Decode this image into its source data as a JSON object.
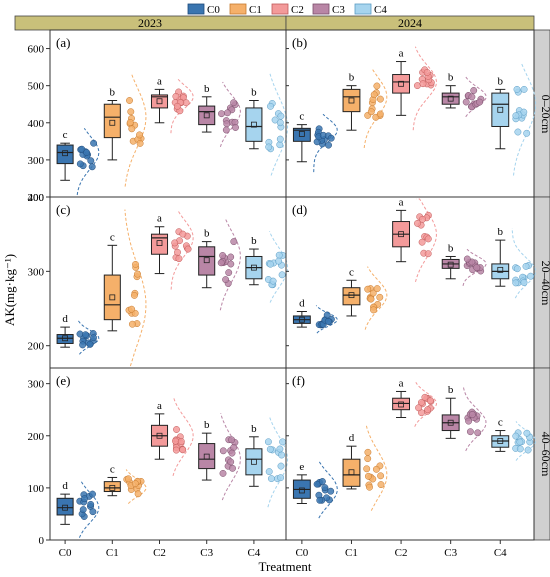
{
  "legend": [
    {
      "name": "C0",
      "color": "#3a75b0"
    },
    {
      "name": "C1",
      "color": "#f5b06a"
    },
    {
      "name": "C2",
      "color": "#f39a9a"
    },
    {
      "name": "C3",
      "color": "#b986a6"
    },
    {
      "name": "C4",
      "color": "#a6d4ee"
    }
  ],
  "years": [
    "2023",
    "2024"
  ],
  "depths": [
    "0–20cm",
    "20–40cm",
    "40–60cm"
  ],
  "ylabel": "AK(mg·kg⁻¹)",
  "xlabel": "Treatment",
  "strip_color": "#c9c07a",
  "side_strip_color": "#d0d0d0",
  "chart_data": [
    {
      "type": "box",
      "panel": "(a)",
      "year": "2023",
      "depth": "0–20cm",
      "ylim": [
        200,
        650
      ],
      "yticks": [
        200,
        300,
        400,
        500,
        600
      ],
      "categories": [
        "C0",
        "C1",
        "C2",
        "C3",
        "C4"
      ],
      "boxes": [
        {
          "q1": 290,
          "median": 320,
          "q3": 340,
          "whisker_low": 245,
          "whisker_high": 345,
          "mean": 318,
          "letter": "c"
        },
        {
          "q1": 360,
          "median": 415,
          "q3": 450,
          "whisker_low": 300,
          "whisker_high": 460,
          "mean": 400,
          "letter": "b"
        },
        {
          "q1": 440,
          "median": 470,
          "q3": 475,
          "whisker_low": 400,
          "whisker_high": 490,
          "mean": 458,
          "letter": "a"
        },
        {
          "q1": 395,
          "median": 430,
          "q3": 445,
          "whisker_low": 375,
          "whisker_high": 470,
          "mean": 420,
          "letter": "b"
        },
        {
          "q1": 350,
          "median": 390,
          "q3": 440,
          "whisker_low": 330,
          "whisker_high": 460,
          "mean": 395,
          "letter": "b"
        }
      ]
    },
    {
      "type": "box",
      "panel": "(b)",
      "year": "2024",
      "depth": "0–20cm",
      "ylim": [
        200,
        650
      ],
      "yticks": [
        200,
        300,
        400,
        500,
        600
      ],
      "categories": [
        "C0",
        "C1",
        "C2",
        "C3",
        "C4"
      ],
      "boxes": [
        {
          "q1": 350,
          "median": 380,
          "q3": 385,
          "whisker_low": 295,
          "whisker_high": 395,
          "mean": 370,
          "letter": "c"
        },
        {
          "q1": 430,
          "median": 470,
          "q3": 490,
          "whisker_low": 380,
          "whisker_high": 500,
          "mean": 460,
          "letter": "b"
        },
        {
          "q1": 480,
          "median": 510,
          "q3": 530,
          "whisker_low": 420,
          "whisker_high": 565,
          "mean": 505,
          "letter": "a"
        },
        {
          "q1": 450,
          "median": 470,
          "q3": 480,
          "whisker_low": 440,
          "whisker_high": 500,
          "mean": 465,
          "letter": "b"
        },
        {
          "q1": 390,
          "median": 450,
          "q3": 480,
          "whisker_low": 330,
          "whisker_high": 490,
          "mean": 435,
          "letter": "b"
        }
      ]
    },
    {
      "type": "box",
      "panel": "(c)",
      "year": "2023",
      "depth": "20–40cm",
      "ylim": [
        170,
        400
      ],
      "yticks": [
        200,
        300,
        400
      ],
      "categories": [
        "C0",
        "C1",
        "C2",
        "C3",
        "C4"
      ],
      "boxes": [
        {
          "q1": 203,
          "median": 210,
          "q3": 215,
          "whisker_low": 198,
          "whisker_high": 225,
          "mean": 210,
          "letter": "d"
        },
        {
          "q1": 235,
          "median": 255,
          "q3": 295,
          "whisker_low": 220,
          "whisker_high": 335,
          "mean": 265,
          "letter": "c"
        },
        {
          "q1": 323,
          "median": 345,
          "q3": 350,
          "whisker_low": 297,
          "whisker_high": 360,
          "mean": 338,
          "letter": "a"
        },
        {
          "q1": 295,
          "median": 320,
          "q3": 333,
          "whisker_low": 278,
          "whisker_high": 340,
          "mean": 315,
          "letter": "b"
        },
        {
          "q1": 290,
          "median": 305,
          "q3": 320,
          "whisker_low": 282,
          "whisker_high": 330,
          "mean": 305,
          "letter": "b"
        }
      ]
    },
    {
      "type": "box",
      "panel": "(d)",
      "year": "2024",
      "depth": "20–40cm",
      "ylim": [
        170,
        400
      ],
      "yticks": [
        200,
        300,
        400
      ],
      "categories": [
        "C0",
        "C1",
        "C2",
        "C3",
        "C4"
      ],
      "boxes": [
        {
          "q1": 230,
          "median": 235,
          "q3": 240,
          "whisker_low": 225,
          "whisker_high": 246,
          "mean": 235,
          "letter": "d"
        },
        {
          "q1": 255,
          "median": 268,
          "q3": 278,
          "whisker_low": 240,
          "whisker_high": 288,
          "mean": 268,
          "letter": "c"
        },
        {
          "q1": 333,
          "median": 350,
          "q3": 367,
          "whisker_low": 313,
          "whisker_high": 382,
          "mean": 350,
          "letter": "a"
        },
        {
          "q1": 304,
          "median": 310,
          "q3": 316,
          "whisker_low": 290,
          "whisker_high": 320,
          "mean": 309,
          "letter": "b"
        },
        {
          "q1": 290,
          "median": 300,
          "q3": 310,
          "whisker_low": 280,
          "whisker_high": 342,
          "mean": 302,
          "letter": "b"
        }
      ]
    },
    {
      "type": "box",
      "panel": "(e)",
      "year": "2023",
      "depth": "40–60cm",
      "ylim": [
        0,
        330
      ],
      "yticks": [
        0,
        100,
        200,
        300
      ],
      "categories": [
        "C0",
        "C1",
        "C2",
        "C3",
        "C4"
      ],
      "boxes": [
        {
          "q1": 48,
          "median": 62,
          "q3": 80,
          "whisker_low": 30,
          "whisker_high": 88,
          "mean": 62,
          "letter": "d"
        },
        {
          "q1": 93,
          "median": 100,
          "q3": 112,
          "whisker_low": 85,
          "whisker_high": 120,
          "mean": 100,
          "letter": "c"
        },
        {
          "q1": 180,
          "median": 200,
          "q3": 220,
          "whisker_low": 155,
          "whisker_high": 242,
          "mean": 200,
          "letter": "a"
        },
        {
          "q1": 137,
          "median": 155,
          "q3": 185,
          "whisker_low": 115,
          "whisker_high": 205,
          "mean": 160,
          "letter": "b"
        },
        {
          "q1": 125,
          "median": 155,
          "q3": 175,
          "whisker_low": 103,
          "whisker_high": 198,
          "mean": 150,
          "letter": "b"
        }
      ]
    },
    {
      "type": "box",
      "panel": "(f)",
      "year": "2024",
      "depth": "40–60cm",
      "ylim": [
        0,
        330
      ],
      "yticks": [
        0,
        100,
        200,
        300
      ],
      "categories": [
        "C0",
        "C1",
        "C2",
        "C3",
        "C4"
      ],
      "boxes": [
        {
          "q1": 80,
          "median": 97,
          "q3": 115,
          "whisker_low": 70,
          "whisker_high": 125,
          "mean": 95,
          "letter": "e"
        },
        {
          "q1": 103,
          "median": 125,
          "q3": 155,
          "whisker_low": 98,
          "whisker_high": 180,
          "mean": 130,
          "letter": "d"
        },
        {
          "q1": 250,
          "median": 262,
          "q3": 272,
          "whisker_low": 235,
          "whisker_high": 285,
          "mean": 260,
          "letter": "a"
        },
        {
          "q1": 210,
          "median": 225,
          "q3": 240,
          "whisker_low": 195,
          "whisker_high": 272,
          "mean": 225,
          "letter": "b"
        },
        {
          "q1": 178,
          "median": 190,
          "q3": 200,
          "whisker_low": 170,
          "whisker_high": 210,
          "mean": 190,
          "letter": "c"
        }
      ]
    }
  ]
}
